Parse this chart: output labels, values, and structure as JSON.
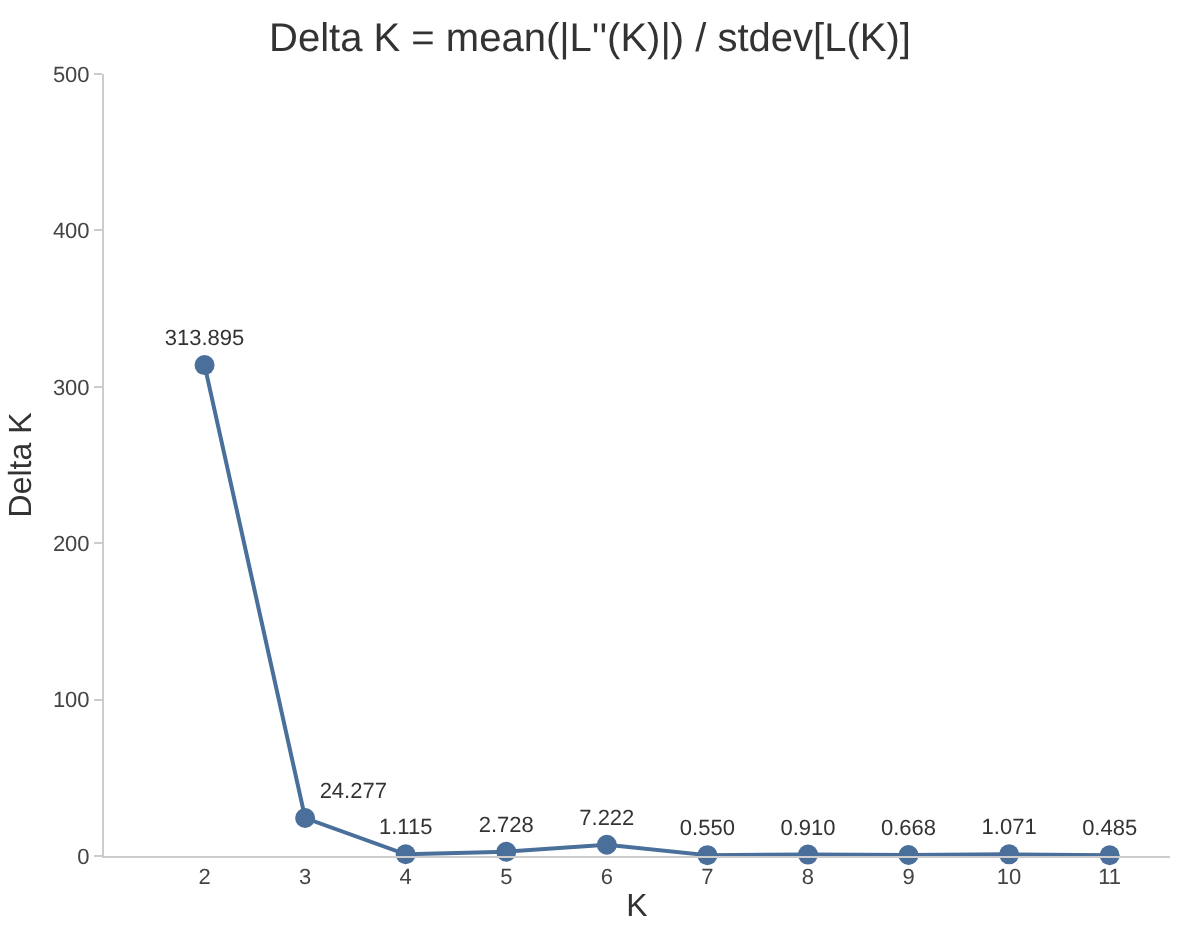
{
  "chart_data": {
    "type": "line",
    "title": "Delta K = mean(|L''(K)|) / stdev[L(K)]",
    "xlabel": "K",
    "ylabel": "Delta K",
    "x": [
      2,
      3,
      4,
      5,
      6,
      7,
      8,
      9,
      10,
      11
    ],
    "series": [
      {
        "color": "#4a6f9a",
        "values": [
          313.895,
          24.277,
          1.115,
          2.728,
          7.222,
          0.55,
          0.91,
          0.668,
          1.071,
          0.485
        ],
        "value_labels": [
          "313.895",
          "24.277",
          "1.115",
          "2.728",
          "7.222",
          "0.550",
          "0.910",
          "0.668",
          "1.071",
          "0.485"
        ]
      }
    ],
    "xlim": [
      1,
      11.6
    ],
    "xticks": [
      2,
      3,
      4,
      5,
      6,
      7,
      8,
      9,
      10,
      11
    ],
    "ylim": [
      0,
      500
    ],
    "yticks": [
      0,
      100,
      200,
      300,
      400,
      500
    ],
    "grid": false,
    "marker": "circle",
    "line_style": "solid"
  }
}
